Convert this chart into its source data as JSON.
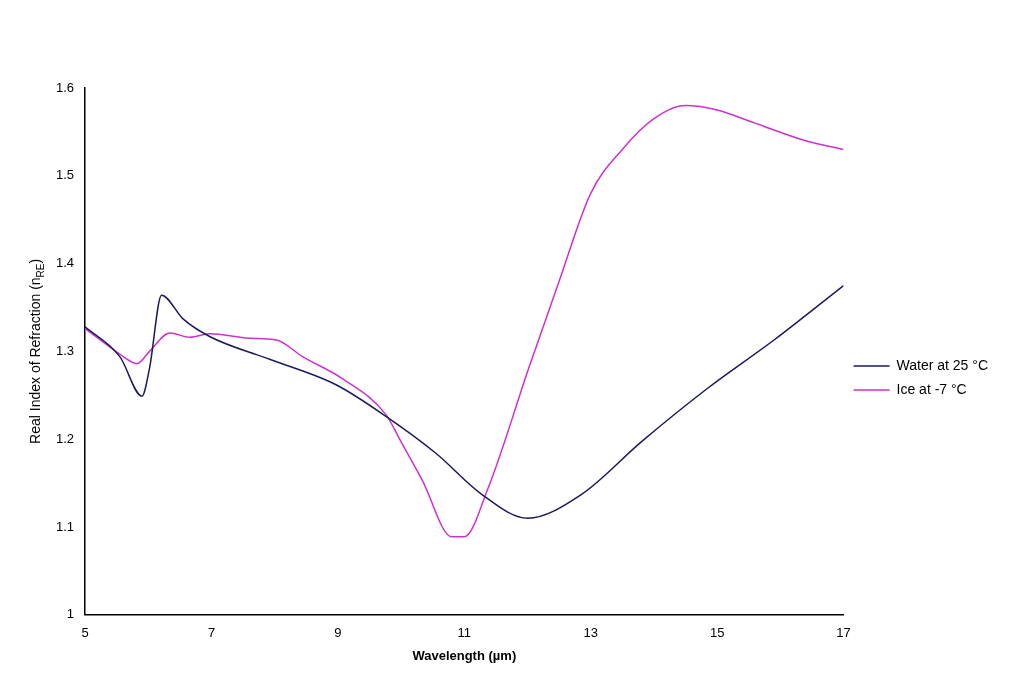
{
  "chart_data": {
    "type": "line",
    "xlabel": "Wavelength (µm)",
    "ylabel": "Real Index of Refraction (n$_{RE}$)",
    "xlim": [
      5,
      17
    ],
    "xticks": [
      5,
      7,
      9,
      11,
      13,
      15,
      17
    ],
    "ylim": [
      1,
      1.6
    ],
    "yticks": [
      1,
      1.1,
      1.2,
      1.3,
      1.4,
      1.5,
      1.6
    ],
    "grid": false,
    "legend": "right",
    "marker": "none",
    "line_style": "solid",
    "series": [
      {
        "name": "Water at 25 °C",
        "color": "#1a1a5e",
        "x": [
          5,
          5.55,
          5.9,
          6.02,
          6.21,
          6.55,
          6.97,
          7.92,
          8.97,
          9.76,
          10.55,
          11.28,
          12.0,
          12.85,
          13.8,
          14.85,
          15.9,
          17
        ],
        "values": [
          1.328,
          1.294,
          1.249,
          1.281,
          1.364,
          1.337,
          1.317,
          1.291,
          1.262,
          1.226,
          1.184,
          1.137,
          1.11,
          1.137,
          1.197,
          1.258,
          1.313,
          1.375
        ]
      },
      {
        "name": "Ice at -7 °C",
        "color": "#cc33cc",
        "x": [
          5,
          5.55,
          5.82,
          6.02,
          6.34,
          6.66,
          6.97,
          7.6,
          8.03,
          8.44,
          9.07,
          9.76,
          10.0,
          10.33,
          10.8,
          11.0,
          11.38,
          12.02,
          12.5,
          13.0,
          13.5,
          14.0,
          14.5,
          15.0,
          15.6,
          16.4,
          17
        ],
        "values": [
          1.326,
          1.297,
          1.286,
          1.3,
          1.321,
          1.316,
          1.32,
          1.315,
          1.313,
          1.294,
          1.269,
          1.228,
          1.197,
          1.154,
          1.089,
          1.089,
          1.145,
          1.281,
          1.38,
          1.48,
          1.53,
          1.565,
          1.58,
          1.575,
          1.56,
          1.54,
          1.53
        ]
      }
    ]
  }
}
